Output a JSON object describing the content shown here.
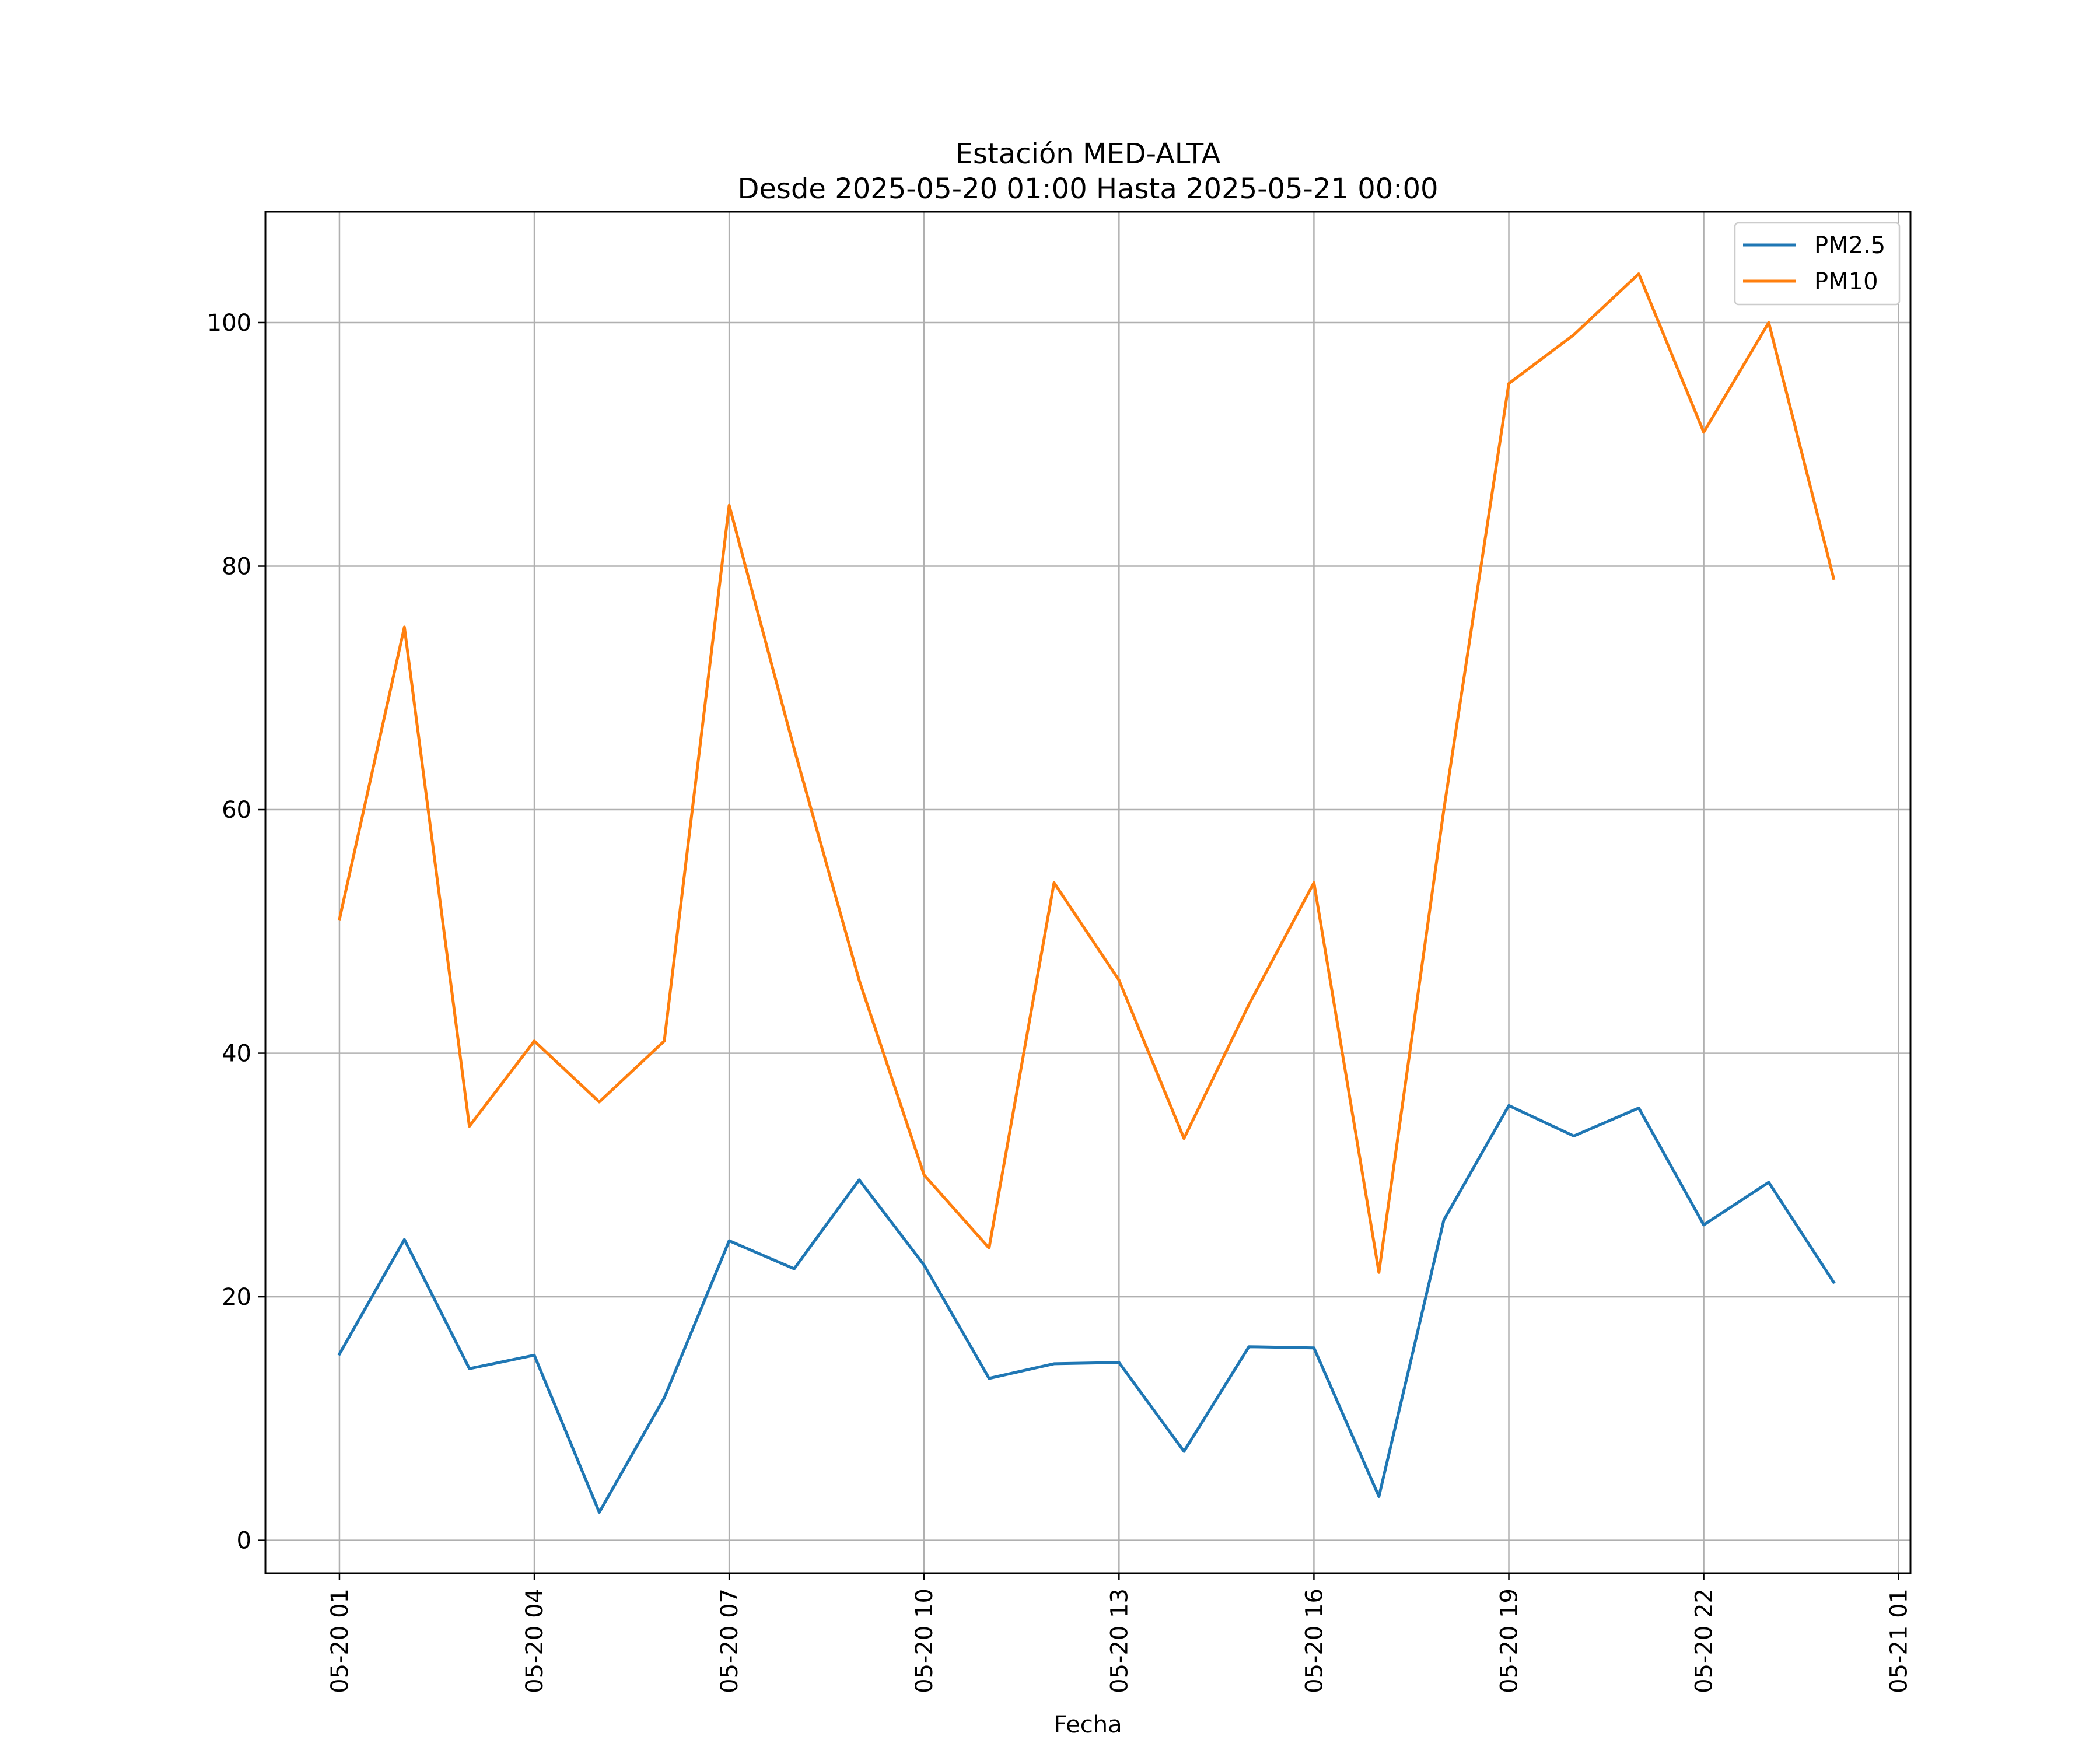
{
  "chart_data": {
    "type": "line",
    "title": "Estación MED-ALTA",
    "subtitle": "Desde 2025-05-20 01:00 Hasta 2025-05-21 00:00",
    "xlabel": "Fecha",
    "ylabel": "",
    "x": [
      "2025-05-20 01:00",
      "2025-05-20 02:00",
      "2025-05-20 03:00",
      "2025-05-20 04:00",
      "2025-05-20 05:00",
      "2025-05-20 06:00",
      "2025-05-20 07:00",
      "2025-05-20 08:00",
      "2025-05-20 09:00",
      "2025-05-20 10:00",
      "2025-05-20 11:00",
      "2025-05-20 12:00",
      "2025-05-20 13:00",
      "2025-05-20 14:00",
      "2025-05-20 15:00",
      "2025-05-20 16:00",
      "2025-05-20 17:00",
      "2025-05-20 18:00",
      "2025-05-20 19:00",
      "2025-05-20 20:00",
      "2025-05-20 21:00",
      "2025-05-20 22:00",
      "2025-05-20 23:00",
      "2025-05-21 00:00"
    ],
    "xlim": [
      "2025-05-20 01:00",
      "2025-05-21 01:00"
    ],
    "ylim": [
      -2.7,
      109.1
    ],
    "yticks": [
      0,
      20,
      40,
      60,
      80,
      100
    ],
    "xticks": [
      {
        "value": "2025-05-20 01:00",
        "label": "05-20 01"
      },
      {
        "value": "2025-05-20 04:00",
        "label": "05-20 04"
      },
      {
        "value": "2025-05-20 07:00",
        "label": "05-20 07"
      },
      {
        "value": "2025-05-20 10:00",
        "label": "05-20 10"
      },
      {
        "value": "2025-05-20 13:00",
        "label": "05-20 13"
      },
      {
        "value": "2025-05-20 16:00",
        "label": "05-20 16"
      },
      {
        "value": "2025-05-20 19:00",
        "label": "05-20 19"
      },
      {
        "value": "2025-05-20 22:00",
        "label": "05-20 22"
      },
      {
        "value": "2025-05-21 01:00",
        "label": "05-21 01"
      }
    ],
    "grid": true,
    "legend_position": "top-right",
    "series": [
      {
        "name": "PM2.5",
        "color": "#1f77b4",
        "values": [
          15.3,
          24.7,
          14.1,
          15.2,
          2.3,
          11.7,
          24.6,
          22.3,
          29.6,
          22.6,
          13.3,
          14.5,
          14.6,
          7.3,
          15.9,
          15.8,
          3.6,
          26.3,
          35.7,
          33.2,
          35.5,
          25.9,
          29.4,
          21.2
        ]
      },
      {
        "name": "PM10",
        "color": "#ff7f0e",
        "values": [
          51,
          75,
          34,
          41,
          36,
          41,
          85,
          65,
          46,
          30,
          24,
          54,
          46,
          33,
          44,
          54,
          22,
          60,
          95,
          99,
          104,
          91,
          100,
          79
        ]
      }
    ]
  }
}
